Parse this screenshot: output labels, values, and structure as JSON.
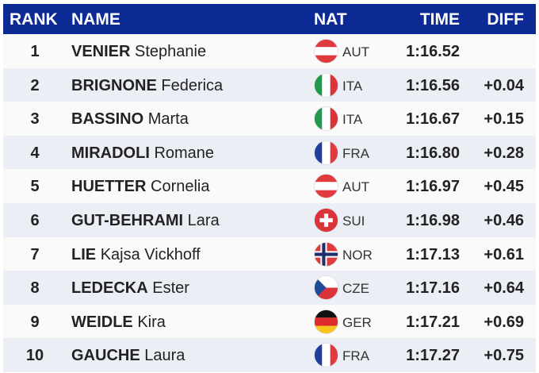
{
  "header": {
    "rank": "RANK",
    "name": "NAME",
    "nat": "NAT",
    "time": "TIME",
    "diff": "DIFF"
  },
  "rows": [
    {
      "rank": "1",
      "last": "VENIER",
      "first": "Stephanie",
      "flag": "austria-flag-icon",
      "nat": "AUT",
      "time": "1:16.52",
      "diff": ""
    },
    {
      "rank": "2",
      "last": "BRIGNONE",
      "first": "Federica",
      "flag": "italy-flag-icon",
      "nat": "ITA",
      "time": "1:16.56",
      "diff": "+0.04"
    },
    {
      "rank": "3",
      "last": "BASSINO",
      "first": "Marta",
      "flag": "italy-flag-icon",
      "nat": "ITA",
      "time": "1:16.67",
      "diff": "+0.15"
    },
    {
      "rank": "4",
      "last": "MIRADOLI",
      "first": "Romane",
      "flag": "france-flag-icon",
      "nat": "FRA",
      "time": "1:16.80",
      "diff": "+0.28"
    },
    {
      "rank": "5",
      "last": "HUETTER",
      "first": "Cornelia",
      "flag": "austria-flag-icon",
      "nat": "AUT",
      "time": "1:16.97",
      "diff": "+0.45"
    },
    {
      "rank": "6",
      "last": "GUT-BEHRAMI",
      "first": "Lara",
      "flag": "switzerland-flag-icon",
      "nat": "SUI",
      "time": "1:16.98",
      "diff": "+0.46"
    },
    {
      "rank": "7",
      "last": "LIE",
      "first": "Kajsa Vickhoff",
      "flag": "norway-flag-icon",
      "nat": "NOR",
      "time": "1:17.13",
      "diff": "+0.61"
    },
    {
      "rank": "8",
      "last": "LEDECKA",
      "first": "Ester",
      "flag": "czechia-flag-icon",
      "nat": "CZE",
      "time": "1:17.16",
      "diff": "+0.64"
    },
    {
      "rank": "9",
      "last": "WEIDLE",
      "first": "Kira",
      "flag": "germany-flag-icon",
      "nat": "GER",
      "time": "1:17.21",
      "diff": "+0.69"
    },
    {
      "rank": "10",
      "last": "GAUCHE",
      "first": "Laura",
      "flag": "france-flag-icon",
      "nat": "FRA",
      "time": "1:17.27",
      "diff": "+0.75"
    }
  ],
  "colors": {
    "header_bg": "#0d2a94",
    "row_odd": "#fafafa",
    "row_even": "#eceef6"
  }
}
